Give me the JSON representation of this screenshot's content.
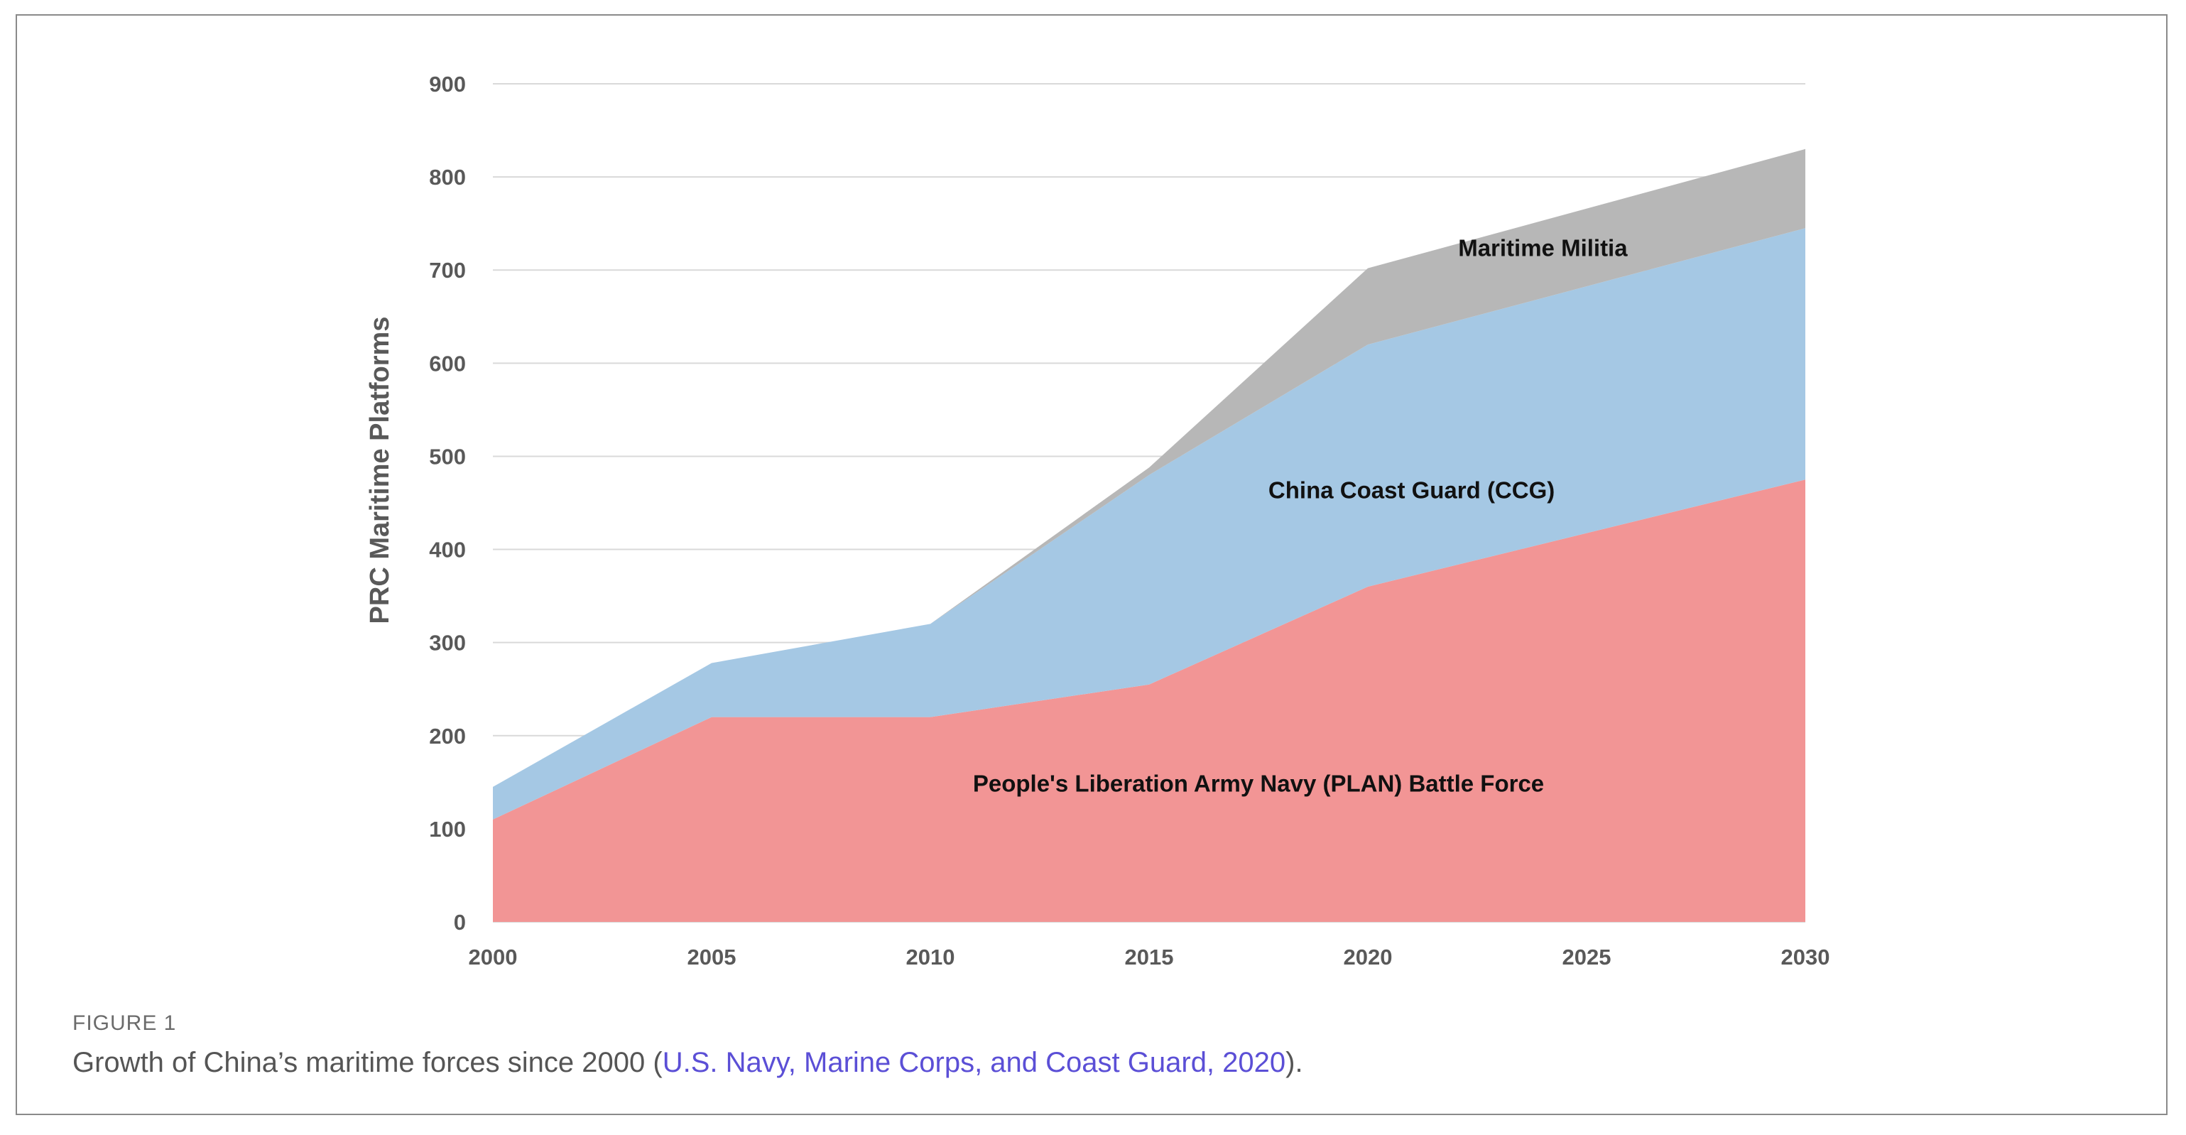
{
  "figure": {
    "label": "FIGURE 1",
    "caption_before": "Growth of China’s maritime forces since 2000 (",
    "caption_link": "U.S. Navy, Marine Corps, and Coast Guard, 2020",
    "caption_after": ")."
  },
  "chart_data": {
    "type": "area",
    "stacked": true,
    "title": "",
    "xlabel": "",
    "ylabel": "PRC Maritime Platforms",
    "x": [
      2000,
      2005,
      2010,
      2015,
      2020,
      2030
    ],
    "xticks": [
      "2000",
      "2005",
      "2010",
      "2015",
      "2020",
      "2025",
      "2030"
    ],
    "yticks": [
      "0",
      "100",
      "200",
      "300",
      "400",
      "500",
      "600",
      "700",
      "800",
      "900"
    ],
    "xlim": [
      2000,
      2030
    ],
    "ylim": [
      0,
      900
    ],
    "grid": true,
    "series": [
      {
        "name": "People's Liberation Army Navy (PLAN) Battle Force",
        "color": "#f29595",
        "values": [
          110,
          220,
          220,
          255,
          360,
          475
        ]
      },
      {
        "name": "China Coast Guard (CCG)",
        "color": "#a5c8e4",
        "values": [
          35,
          58,
          100,
          225,
          260,
          270
        ]
      },
      {
        "name": "Maritime Militia",
        "color": "#b7b7b7",
        "values": [
          0,
          0,
          0,
          8,
          82,
          85
        ]
      }
    ],
    "annotations": [
      {
        "text": "Maritime Militia",
        "x": 2024,
        "y": 715
      },
      {
        "text": "China Coast Guard (CCG)",
        "x": 2021,
        "y": 455
      },
      {
        "text": "People's Liberation Army Navy (PLAN) Battle Force",
        "x": 2017.5,
        "y": 140
      }
    ]
  }
}
